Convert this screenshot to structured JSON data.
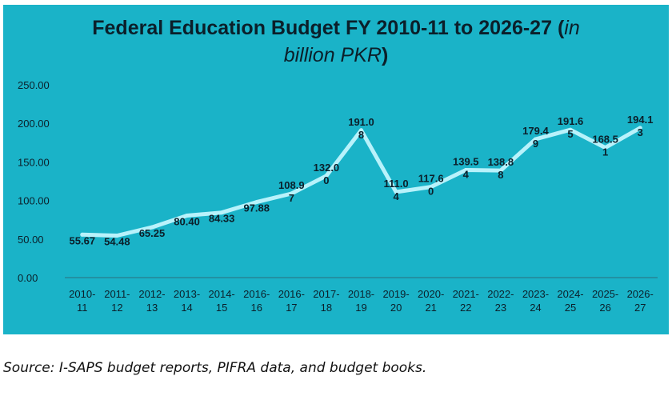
{
  "title_main": "Federal Education Budget FY 2010-11 to 2026-27 (",
  "title_unit": "in",
  "title_line2": "billion PKR",
  "title_close": ")",
  "source": "Source: I-SAPS budget reports, PIFRA data, and budget books.",
  "colors": {
    "panel": "#1ab3c8",
    "line": "#b8f2fb",
    "text": "#0b1f2a"
  },
  "chart_data": {
    "type": "line",
    "title": "Federal Education Budget FY 2010-11 to 2026-27 (in billion PKR)",
    "ylim": [
      0,
      250
    ],
    "yticks": [
      "0.00",
      "50.00",
      "100.00",
      "150.00",
      "200.00",
      "250.00"
    ],
    "grid": false,
    "categories": [
      [
        "2010-",
        "11"
      ],
      [
        "2011-",
        "12"
      ],
      [
        "2012-",
        "13"
      ],
      [
        "2013-",
        "14"
      ],
      [
        "2014-",
        "15"
      ],
      [
        "2016-",
        "16"
      ],
      [
        "2016-",
        "17"
      ],
      [
        "2017-",
        "18"
      ],
      [
        "2018-",
        "19"
      ],
      [
        "2019-",
        "20"
      ],
      [
        "2020-",
        "21"
      ],
      [
        "2021-",
        "22"
      ],
      [
        "2022-",
        "23"
      ],
      [
        "2023-",
        "24"
      ],
      [
        "2024-",
        "25"
      ],
      [
        "2025-",
        "26"
      ],
      [
        "2026-",
        "27"
      ]
    ],
    "values": [
      55.67,
      54.48,
      65.25,
      80.4,
      84.33,
      97.88,
      108.97,
      132.0,
      191.08,
      111.04,
      117.6,
      139.54,
      138.88,
      179.49,
      191.65,
      168.51,
      194.13
    ],
    "data_labels": [
      [
        "55.67"
      ],
      [
        "54.48"
      ],
      [
        "65.25"
      ],
      [
        "80.40"
      ],
      [
        "84.33"
      ],
      [
        "97.88"
      ],
      [
        "108.9",
        "7"
      ],
      [
        "132.0",
        "0"
      ],
      [
        "191.0",
        "8"
      ],
      [
        "111.0",
        "4"
      ],
      [
        "117.6",
        "0"
      ],
      [
        "139.5",
        "4"
      ],
      [
        "138.8",
        "8"
      ],
      [
        "179.4",
        "9"
      ],
      [
        "191.6",
        "5"
      ],
      [
        "168.5",
        "1"
      ],
      [
        "194.1",
        "3"
      ]
    ]
  }
}
